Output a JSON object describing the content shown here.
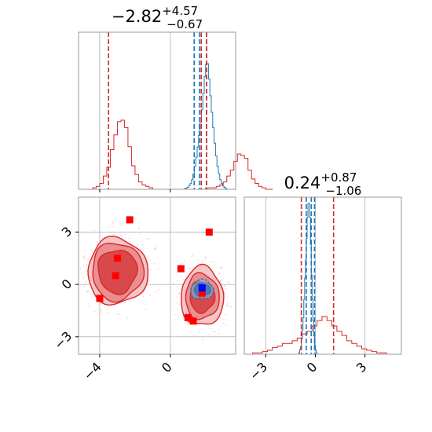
{
  "chart_data": {
    "type": "corner",
    "colors": {
      "series_a": "#d62728",
      "series_b": "#1f77b4",
      "marker_a": "#ff0000",
      "marker_b": "#0000ff",
      "grid": "#b0b0b0"
    },
    "xlim_param1": [
      -5.2,
      3.7
    ],
    "xlim_param2": [
      -4.3,
      5.2
    ],
    "ylim_param2": [
      -4.0,
      5.0
    ],
    "param1_ticks": [
      {
        "v": -4,
        "label": "−4"
      },
      {
        "v": 0,
        "label": "0"
      }
    ],
    "param2_ticks": [
      {
        "v": -3,
        "label": "−3"
      },
      {
        "v": 0,
        "label": "0"
      },
      {
        "v": 3,
        "label": "3"
      }
    ],
    "titles": [
      {
        "main": "−2.82",
        "sup": "+4.57",
        "sub": "−0.67"
      },
      {
        "main": "0.24",
        "sup": "+0.87",
        "sub": "−1.06"
      }
    ],
    "quantile_lines": {
      "param1_red": [
        -3.5,
        1.75,
        2.05
      ],
      "param1_blue": [
        1.35,
        1.65,
        2.05
      ],
      "param2_red": [
        -0.85,
        1.1
      ],
      "param2_blue": [
        -0.55,
        -0.25,
        -0.05
      ]
    },
    "hist_param1_red": {
      "start": -4.4,
      "width": 0.2,
      "counts": [
        1,
        2,
        4,
        9,
        15,
        27,
        37,
        46,
        47,
        42,
        29,
        16,
        10,
        5,
        3,
        2,
        1,
        0,
        0,
        0,
        0,
        0,
        0,
        0,
        0,
        0,
        0,
        0,
        0,
        0,
        0,
        0,
        1,
        1,
        1,
        2,
        3,
        5,
        9,
        13,
        19,
        24,
        23,
        21,
        13,
        7,
        4,
        2,
        1,
        0,
        0
      ]
    },
    "hist_param1_blue": {
      "start": 0.8,
      "width": 0.08,
      "counts": [
        1,
        2,
        3,
        6,
        9,
        15,
        24,
        36,
        50,
        66,
        84,
        104,
        124,
        150,
        176,
        195,
        196,
        172,
        146,
        120,
        96,
        72,
        52,
        36,
        24,
        15,
        9,
        5,
        3,
        1
      ]
    },
    "hist_param2_red": {
      "start": -3.8,
      "width": 0.3,
      "counts": [
        1,
        1,
        2,
        3,
        5,
        6,
        8,
        8,
        10,
        12,
        15,
        17,
        21,
        25,
        28,
        25,
        21,
        17,
        14,
        10,
        8,
        6,
        4,
        3,
        2,
        1,
        1
      ]
    },
    "hist_param2_blue": {
      "start": -1.0,
      "width": 0.05,
      "counts": [
        1,
        3,
        5,
        10,
        16,
        24,
        36,
        50,
        62,
        76,
        90,
        99,
        99,
        90,
        72,
        52,
        36,
        22,
        12,
        6,
        3,
        1
      ]
    },
    "markers_red": [
      [
        -2.3,
        3.7
      ],
      [
        2.2,
        3.0
      ],
      [
        -3.0,
        1.5
      ],
      [
        -3.1,
        0.5
      ],
      [
        -4.0,
        -0.8
      ],
      [
        0.6,
        0.9
      ],
      [
        1.0,
        -1.9
      ],
      [
        1.3,
        -2.1
      ],
      [
        1.8,
        -0.5
      ]
    ],
    "markers_blue": [
      [
        1.8,
        -0.2
      ]
    ],
    "contours_red": [
      {
        "cx": -3.0,
        "cy": 0.75,
        "rx": [
          1.1,
          1.45,
          1.7
        ],
        "ry": [
          1.25,
          1.65,
          1.9
        ]
      },
      {
        "cx": 1.8,
        "cy": -0.7,
        "rx": [
          0.7,
          0.95,
          1.2
        ],
        "ry": [
          0.9,
          1.3,
          1.7
        ]
      }
    ],
    "contours_blue": [
      {
        "cx": 1.8,
        "cy": -0.3,
        "rx": [
          0.45,
          0.65
        ],
        "ry": [
          0.35,
          0.55
        ]
      }
    ]
  }
}
